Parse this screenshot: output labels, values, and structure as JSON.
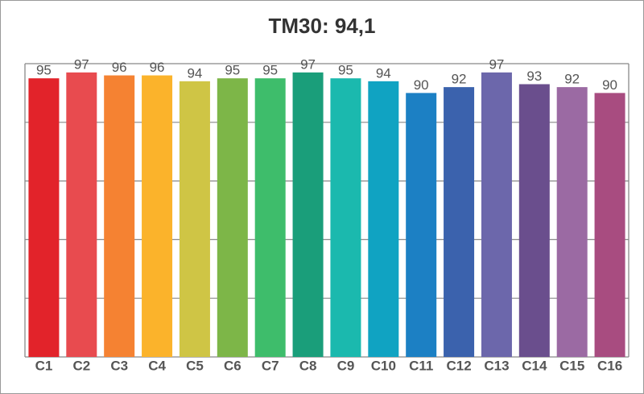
{
  "chart_data": {
    "type": "bar",
    "title": "TM30: 94,1",
    "categories": [
      "C1",
      "C2",
      "C3",
      "C4",
      "C5",
      "C6",
      "C7",
      "C8",
      "C9",
      "C10",
      "C11",
      "C12",
      "C13",
      "C14",
      "C15",
      "C16"
    ],
    "values": [
      95,
      97,
      96,
      96,
      94,
      95,
      95,
      97,
      95,
      94,
      90,
      92,
      97,
      93,
      92,
      90
    ],
    "colors": [
      "#e2232a",
      "#e84b4f",
      "#f58232",
      "#fbb32b",
      "#cfc545",
      "#7db648",
      "#3ebd6b",
      "#1a9e7a",
      "#1bb9ae",
      "#10a3c2",
      "#1c80c4",
      "#3b62ad",
      "#6c67ab",
      "#6a4e8d",
      "#9b6aa3",
      "#a84c80"
    ],
    "ylim": [
      0,
      100
    ],
    "yticks": [
      0,
      20,
      40,
      60,
      80,
      100
    ],
    "grid": true
  }
}
